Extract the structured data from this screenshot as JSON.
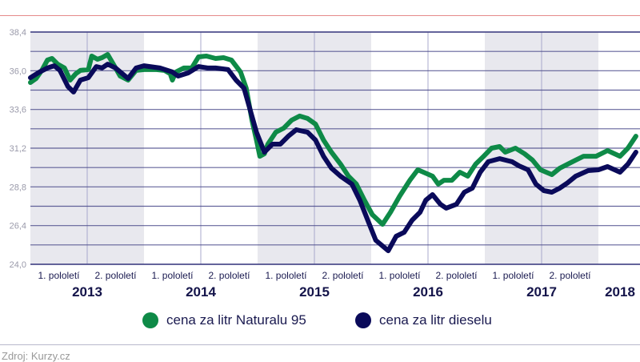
{
  "colors": {
    "natural": "#0e8a47",
    "diesel": "#0a0a5a",
    "shade": "#e8e8ee",
    "grid": "#4a4a8a",
    "title_rule": "#e58a8a"
  },
  "chart_data": {
    "type": "line",
    "title": "",
    "xlabel": "",
    "ylabel": "",
    "xlim": [
      2013,
      2018.35
    ],
    "ylim": [
      24.0,
      38.4
    ],
    "y_ticks": [
      "24,0",
      "26,4",
      "28,8",
      "31,2",
      "33,6",
      "36,0",
      "38,4"
    ],
    "y_tick_values": [
      24.0,
      26.4,
      28.8,
      31.2,
      33.6,
      36.0,
      38.4
    ],
    "minor_grid_step": 1.2,
    "grid": true,
    "years": [
      "2013",
      "2014",
      "2015",
      "2016",
      "2017",
      "2018"
    ],
    "half_labels": [
      "1. pololetí",
      "2. pololetí"
    ],
    "shaded_years": [
      2013,
      2015,
      2017
    ],
    "legend_position": "bottom-center",
    "series": [
      {
        "name": "cena za litr Naturalu 95",
        "color": "#0e8a47",
        "points": [
          [
            2013.0,
            35.27
          ],
          [
            2013.05,
            35.52
          ],
          [
            2013.1,
            36.02
          ],
          [
            2013.15,
            36.66
          ],
          [
            2013.19,
            36.76
          ],
          [
            2013.24,
            36.41
          ],
          [
            2013.3,
            36.17
          ],
          [
            2013.35,
            35.42
          ],
          [
            2013.4,
            35.82
          ],
          [
            2013.44,
            36.02
          ],
          [
            2013.51,
            36.07
          ],
          [
            2013.54,
            36.91
          ],
          [
            2013.59,
            36.71
          ],
          [
            2013.63,
            36.81
          ],
          [
            2013.68,
            37.01
          ],
          [
            2013.73,
            36.41
          ],
          [
            2013.79,
            35.67
          ],
          [
            2013.86,
            35.42
          ],
          [
            2013.93,
            36.02
          ],
          [
            2014.0,
            36.07
          ],
          [
            2014.11,
            36.07
          ],
          [
            2014.18,
            36.02
          ],
          [
            2014.23,
            35.82
          ],
          [
            2014.25,
            35.42
          ],
          [
            2014.28,
            35.92
          ],
          [
            2014.35,
            36.17
          ],
          [
            2014.42,
            36.17
          ],
          [
            2014.48,
            36.86
          ],
          [
            2014.55,
            36.91
          ],
          [
            2014.63,
            36.76
          ],
          [
            2014.7,
            36.81
          ],
          [
            2014.77,
            36.66
          ],
          [
            2014.85,
            35.92
          ],
          [
            2014.9,
            34.92
          ],
          [
            2014.95,
            32.94
          ],
          [
            2014.99,
            31.7
          ],
          [
            2015.02,
            30.7
          ],
          [
            2015.06,
            30.85
          ],
          [
            2015.09,
            31.45
          ],
          [
            2015.16,
            32.19
          ],
          [
            2015.23,
            32.44
          ],
          [
            2015.3,
            32.94
          ],
          [
            2015.37,
            33.19
          ],
          [
            2015.44,
            33.04
          ],
          [
            2015.51,
            32.69
          ],
          [
            2015.58,
            31.7
          ],
          [
            2015.65,
            30.95
          ],
          [
            2015.73,
            30.21
          ],
          [
            2015.8,
            29.46
          ],
          [
            2015.87,
            28.97
          ],
          [
            2015.94,
            27.97
          ],
          [
            2016.01,
            27.08
          ],
          [
            2016.1,
            26.48
          ],
          [
            2016.17,
            27.23
          ],
          [
            2016.25,
            28.22
          ],
          [
            2016.34,
            29.21
          ],
          [
            2016.41,
            29.86
          ],
          [
            2016.46,
            29.71
          ],
          [
            2016.54,
            29.46
          ],
          [
            2016.59,
            28.97
          ],
          [
            2016.64,
            29.21
          ],
          [
            2016.71,
            29.21
          ],
          [
            2016.78,
            29.71
          ],
          [
            2016.85,
            29.46
          ],
          [
            2016.92,
            30.21
          ],
          [
            2016.99,
            30.7
          ],
          [
            2017.06,
            31.2
          ],
          [
            2017.13,
            31.3
          ],
          [
            2017.18,
            30.95
          ],
          [
            2017.27,
            31.2
          ],
          [
            2017.35,
            30.85
          ],
          [
            2017.42,
            30.46
          ],
          [
            2017.49,
            29.86
          ],
          [
            2017.59,
            29.56
          ],
          [
            2017.66,
            29.96
          ],
          [
            2017.73,
            30.21
          ],
          [
            2017.8,
            30.46
          ],
          [
            2017.87,
            30.7
          ],
          [
            2017.98,
            30.7
          ],
          [
            2018.08,
            31.05
          ],
          [
            2018.19,
            30.7
          ],
          [
            2018.26,
            31.2
          ],
          [
            2018.33,
            31.94
          ]
        ]
      },
      {
        "name": "cena za litr dieselu",
        "color": "#0a0a5a",
        "points": [
          [
            2013.0,
            35.57
          ],
          [
            2013.08,
            35.92
          ],
          [
            2013.15,
            36.17
          ],
          [
            2013.21,
            36.31
          ],
          [
            2013.26,
            36.02
          ],
          [
            2013.33,
            35.02
          ],
          [
            2013.38,
            34.68
          ],
          [
            2013.44,
            35.42
          ],
          [
            2013.51,
            35.57
          ],
          [
            2013.58,
            36.26
          ],
          [
            2013.63,
            36.17
          ],
          [
            2013.68,
            36.41
          ],
          [
            2013.75,
            36.17
          ],
          [
            2013.86,
            35.52
          ],
          [
            2013.93,
            36.17
          ],
          [
            2014.0,
            36.31
          ],
          [
            2014.14,
            36.17
          ],
          [
            2014.25,
            35.92
          ],
          [
            2014.3,
            35.67
          ],
          [
            2014.39,
            35.87
          ],
          [
            2014.48,
            36.26
          ],
          [
            2014.56,
            36.17
          ],
          [
            2014.63,
            36.17
          ],
          [
            2014.74,
            36.07
          ],
          [
            2014.81,
            35.42
          ],
          [
            2014.88,
            34.92
          ],
          [
            2014.95,
            33.19
          ],
          [
            2014.99,
            32.19
          ],
          [
            2015.06,
            30.95
          ],
          [
            2015.13,
            31.45
          ],
          [
            2015.2,
            31.45
          ],
          [
            2015.27,
            31.94
          ],
          [
            2015.34,
            32.34
          ],
          [
            2015.44,
            32.19
          ],
          [
            2015.51,
            31.7
          ],
          [
            2015.58,
            30.7
          ],
          [
            2015.65,
            29.96
          ],
          [
            2015.73,
            29.46
          ],
          [
            2015.83,
            28.97
          ],
          [
            2015.9,
            27.97
          ],
          [
            2015.97,
            26.73
          ],
          [
            2016.04,
            25.49
          ],
          [
            2016.15,
            24.84
          ],
          [
            2016.22,
            25.74
          ],
          [
            2016.29,
            25.98
          ],
          [
            2016.36,
            26.73
          ],
          [
            2016.43,
            27.23
          ],
          [
            2016.48,
            27.97
          ],
          [
            2016.54,
            28.32
          ],
          [
            2016.61,
            27.72
          ],
          [
            2016.66,
            27.48
          ],
          [
            2016.75,
            27.72
          ],
          [
            2016.82,
            28.47
          ],
          [
            2016.89,
            28.72
          ],
          [
            2016.96,
            29.71
          ],
          [
            2017.03,
            30.36
          ],
          [
            2017.13,
            30.55
          ],
          [
            2017.24,
            30.36
          ],
          [
            2017.3,
            30.11
          ],
          [
            2017.38,
            29.86
          ],
          [
            2017.45,
            28.97
          ],
          [
            2017.52,
            28.57
          ],
          [
            2017.59,
            28.47
          ],
          [
            2017.66,
            28.72
          ],
          [
            2017.73,
            29.06
          ],
          [
            2017.8,
            29.46
          ],
          [
            2017.91,
            29.81
          ],
          [
            2018.0,
            29.86
          ],
          [
            2018.08,
            30.06
          ],
          [
            2018.19,
            29.71
          ],
          [
            2018.26,
            30.21
          ],
          [
            2018.33,
            30.95
          ]
        ]
      }
    ]
  },
  "legend": {
    "natural": "cena za litr Naturalu 95",
    "diesel": "cena za litr dieselu"
  },
  "source": "Zdroj: Kurzy.cz"
}
